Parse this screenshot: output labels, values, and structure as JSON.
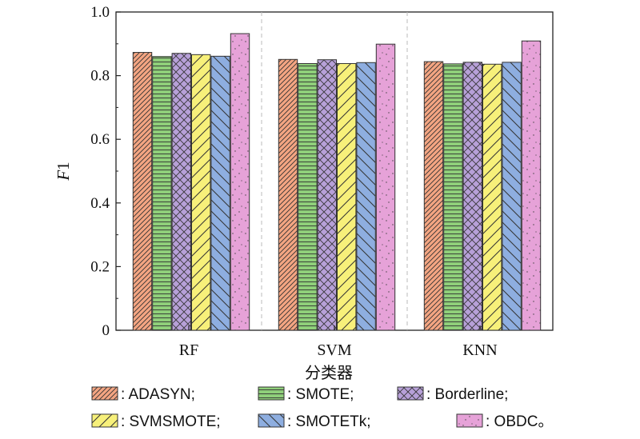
{
  "chart_data": {
    "type": "bar",
    "title": "",
    "xlabel": "分类器",
    "ylabel_italic": "F",
    "ylabel_rest": "1",
    "ylim": [
      0,
      1.0
    ],
    "yticks": [
      "0",
      "0.2",
      "0.4",
      "0.6",
      "0.8",
      "1.0"
    ],
    "categories": [
      "RF",
      "SVM",
      "KNN"
    ],
    "series": [
      {
        "name": "ADASYN",
        "label": ": ADASYN;",
        "color": "#f4a582",
        "pattern": "diag-right",
        "values": [
          0.873,
          0.851,
          0.844
        ]
      },
      {
        "name": "SMOTE",
        "label": ": SMOTE;",
        "color": "#8fcf7a",
        "pattern": "horizontal",
        "values": [
          0.86,
          0.838,
          0.837
        ]
      },
      {
        "name": "Borderline",
        "label": ": Borderline;",
        "color": "#b7a0d8",
        "pattern": "crosshatch",
        "values": [
          0.87,
          0.85,
          0.842
        ]
      },
      {
        "name": "SVMSMOTE",
        "label": ": SVMSMOTE;",
        "color": "#f7f07a",
        "pattern": "diag-right-wide",
        "values": [
          0.866,
          0.838,
          0.836
        ]
      },
      {
        "name": "SMOTETk",
        "label": ": SMOTETk;",
        "color": "#8eaee0",
        "pattern": "diag-left",
        "values": [
          0.861,
          0.841,
          0.842
        ]
      },
      {
        "name": "OBDC",
        "label": ": OBDC。",
        "color": "#e6a2d8",
        "pattern": "dots",
        "values": [
          0.932,
          0.899,
          0.909
        ]
      }
    ],
    "grid": false,
    "legend_position": "bottom"
  }
}
